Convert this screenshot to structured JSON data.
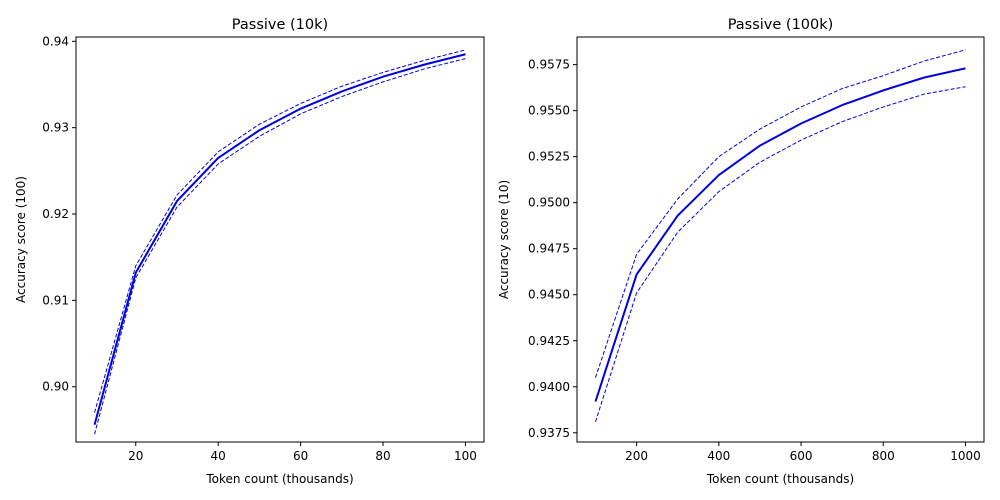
{
  "chart_data": [
    {
      "type": "line",
      "title": "Passive (10k)",
      "xlabel": "Token count (thousands)",
      "ylabel": "Accuracy score (100)",
      "xlim": [
        5.5,
        104.5
      ],
      "ylim": [
        0.8936,
        0.9405
      ],
      "xticks": [
        20,
        40,
        60,
        80,
        100
      ],
      "xtick_labels": [
        "20",
        "40",
        "60",
        "80",
        "100"
      ],
      "yticks": [
        0.9,
        0.91,
        0.92,
        0.93,
        0.94
      ],
      "ytick_labels": [
        "0.90",
        "0.91",
        "0.92",
        "0.93",
        "0.94"
      ],
      "grid": false,
      "color": "#0000dd",
      "x": [
        10,
        20,
        30,
        40,
        50,
        60,
        70,
        80,
        90,
        100
      ],
      "series": [
        {
          "role": "mean",
          "values": [
            0.8956,
            0.9132,
            0.9215,
            0.9265,
            0.9297,
            0.9322,
            0.9342,
            0.9359,
            0.9373,
            0.9385
          ]
        },
        {
          "role": "upper",
          "values": [
            0.897,
            0.914,
            0.9222,
            0.9272,
            0.9304,
            0.9328,
            0.9348,
            0.9364,
            0.9378,
            0.939
          ]
        },
        {
          "role": "lower",
          "values": [
            0.8945,
            0.9126,
            0.9208,
            0.9258,
            0.929,
            0.9316,
            0.9336,
            0.9353,
            0.9368,
            0.938
          ]
        }
      ]
    },
    {
      "type": "line",
      "title": "Passive (100k)",
      "xlabel": "Token count (thousands)",
      "ylabel": "Accuracy score (10)",
      "xlim": [
        55,
        1045
      ],
      "ylim": [
        0.937,
        0.959
      ],
      "xticks": [
        200,
        400,
        600,
        800,
        1000
      ],
      "xtick_labels": [
        "200",
        "400",
        "600",
        "800",
        "1000"
      ],
      "yticks": [
        0.9375,
        0.94,
        0.9425,
        0.945,
        0.9475,
        0.95,
        0.9525,
        0.955,
        0.9575
      ],
      "ytick_labels": [
        "0.9375",
        "0.9400",
        "0.9425",
        "0.9450",
        "0.9475",
        "0.9500",
        "0.9525",
        "0.9550",
        "0.9575"
      ],
      "grid": false,
      "color": "#0000dd",
      "x": [
        100,
        200,
        300,
        400,
        500,
        600,
        700,
        800,
        900,
        1000
      ],
      "series": [
        {
          "role": "mean",
          "values": [
            0.9392,
            0.9461,
            0.9493,
            0.9515,
            0.9531,
            0.9543,
            0.9553,
            0.9561,
            0.9568,
            0.9573
          ]
        },
        {
          "role": "upper",
          "values": [
            0.9405,
            0.9472,
            0.9502,
            0.9525,
            0.954,
            0.9552,
            0.9562,
            0.9569,
            0.9577,
            0.9583
          ]
        },
        {
          "role": "lower",
          "values": [
            0.9381,
            0.9451,
            0.9484,
            0.9506,
            0.9522,
            0.9534,
            0.9544,
            0.9552,
            0.9559,
            0.9563
          ]
        }
      ]
    }
  ]
}
